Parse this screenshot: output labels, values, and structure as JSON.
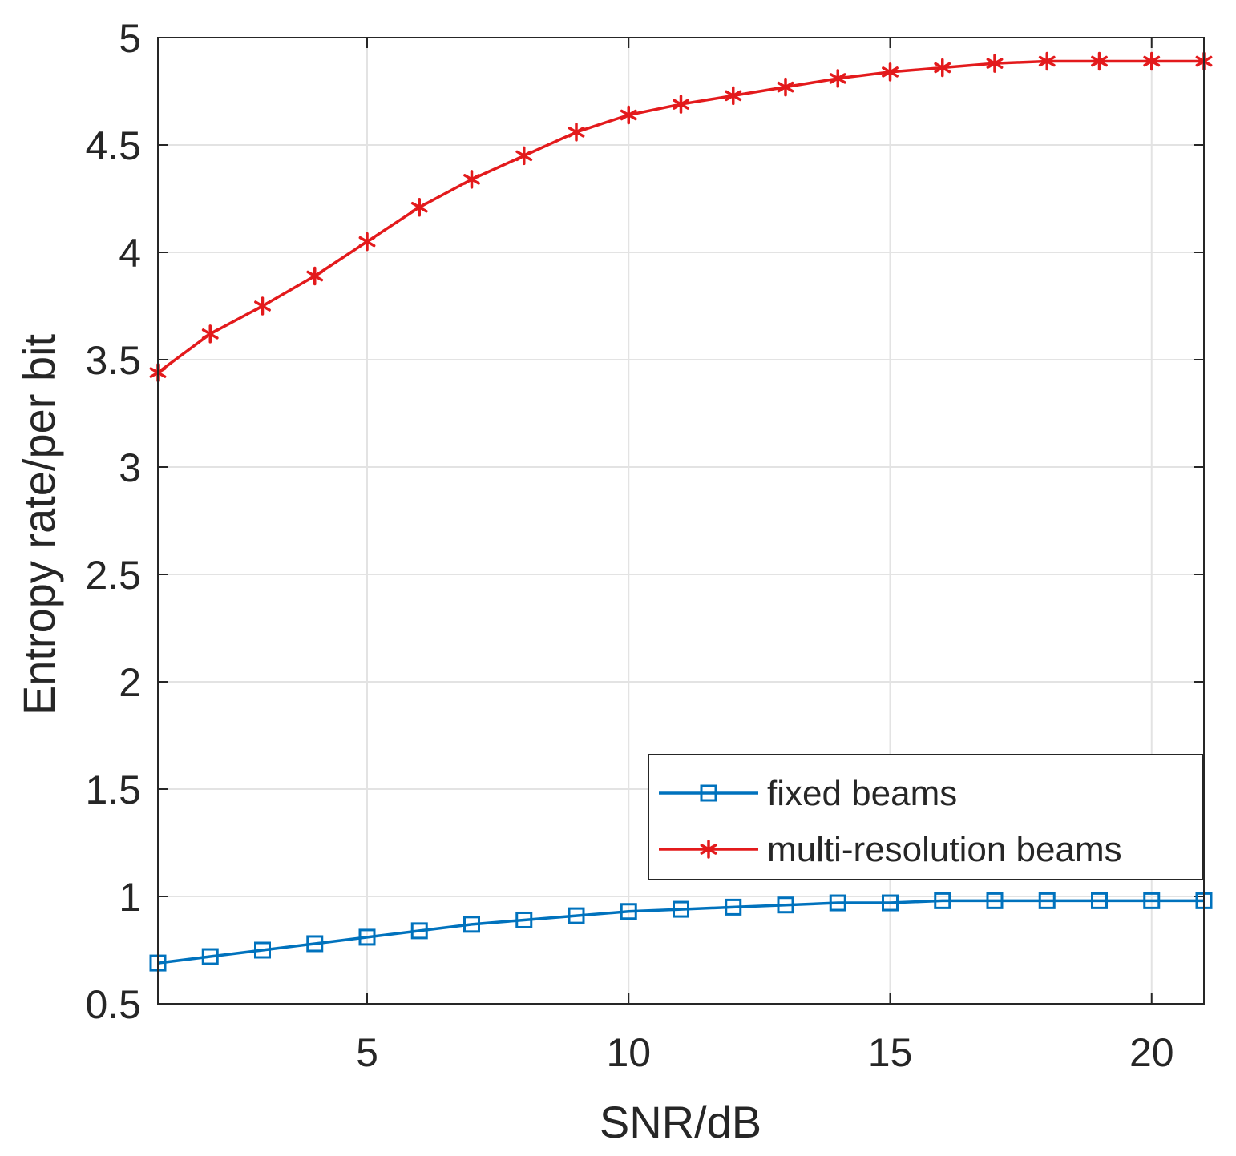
{
  "chart_data": {
    "type": "line",
    "title": "",
    "xlabel": "SNR/dB",
    "ylabel": "Entropy rate/per bit",
    "xlim": [
      1,
      21
    ],
    "ylim": [
      0.5,
      5
    ],
    "xticks": [
      5,
      10,
      15,
      20
    ],
    "yticks": [
      0.5,
      1,
      1.5,
      2,
      2.5,
      3,
      3.5,
      4,
      4.5,
      5
    ],
    "xtick_labels": [
      "5",
      "10",
      "15",
      "20"
    ],
    "ytick_labels": [
      "0.5",
      "1",
      "1.5",
      "2",
      "2.5",
      "3",
      "3.5",
      "4",
      "4.5",
      "5"
    ],
    "grid": true,
    "legend_position": "bottom-right",
    "x": [
      1,
      2,
      3,
      4,
      5,
      6,
      7,
      8,
      9,
      10,
      11,
      12,
      13,
      14,
      15,
      16,
      17,
      18,
      19,
      20,
      21
    ],
    "series": [
      {
        "name": "fixed beams",
        "color": "#0072BD",
        "marker": "square",
        "values": [
          0.69,
          0.72,
          0.75,
          0.78,
          0.81,
          0.84,
          0.87,
          0.89,
          0.91,
          0.93,
          0.94,
          0.95,
          0.96,
          0.97,
          0.97,
          0.98,
          0.98,
          0.98,
          0.98,
          0.98,
          0.98
        ]
      },
      {
        "name": "multi-resolution beams",
        "color": "#E31A1C",
        "marker": "asterisk",
        "values": [
          3.44,
          3.62,
          3.75,
          3.89,
          4.05,
          4.21,
          4.34,
          4.45,
          4.56,
          4.64,
          4.69,
          4.73,
          4.77,
          4.81,
          4.84,
          4.86,
          4.88,
          4.89,
          4.89,
          4.89,
          4.89
        ]
      }
    ]
  }
}
